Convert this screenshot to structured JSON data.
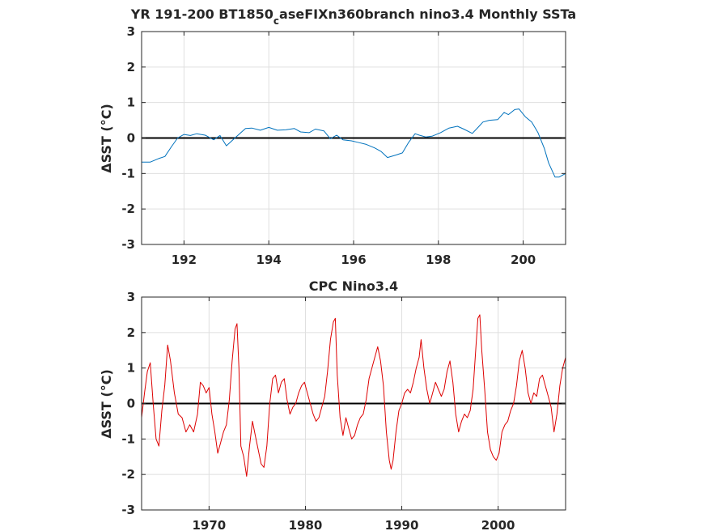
{
  "chart_data": [
    {
      "type": "line",
      "title": "YR 191-200 BT1850",
      "title_subscript": "c",
      "title_rest": "aseFIXn360branch nino3.4 Monthly SSTa",
      "ylabel": "ΔSST (°C)",
      "xlim": [
        191,
        201
      ],
      "ylim": [
        -3,
        3
      ],
      "xticks": [
        192,
        194,
        196,
        198,
        200
      ],
      "xtick_labels": [
        "192",
        "194",
        "196",
        "198",
        "200"
      ],
      "yticks": [
        -3,
        -2,
        -1,
        0,
        1,
        2,
        3
      ],
      "ytick_labels": [
        "-3",
        "-2",
        "-1",
        "0",
        "1",
        "2",
        "3"
      ],
      "grid": true,
      "zero_line": true,
      "series": [
        {
          "color": "#0072BD",
          "x": [
            191.0,
            191.2,
            191.4,
            191.55,
            191.7,
            191.85,
            192.0,
            192.15,
            192.3,
            192.5,
            192.7,
            192.85,
            193.0,
            193.2,
            193.45,
            193.6,
            193.8,
            194.0,
            194.2,
            194.4,
            194.6,
            194.75,
            194.95,
            195.1,
            195.3,
            195.45,
            195.6,
            195.75,
            195.95,
            196.1,
            196.3,
            196.5,
            196.65,
            196.8,
            197.0,
            197.15,
            197.3,
            197.45,
            197.55,
            197.7,
            197.85,
            198.05,
            198.25,
            198.45,
            198.6,
            198.8,
            198.95,
            199.05,
            199.2,
            199.4,
            199.55,
            199.65,
            199.8,
            199.9,
            200.05,
            200.2,
            200.35,
            200.5,
            200.6,
            200.75,
            200.85,
            201.0
          ],
          "y": [
            -0.68,
            -0.68,
            -0.58,
            -0.52,
            -0.25,
            0.0,
            0.1,
            0.07,
            0.12,
            0.08,
            -0.05,
            0.07,
            -0.22,
            0.0,
            0.27,
            0.28,
            0.22,
            0.3,
            0.22,
            0.23,
            0.27,
            0.17,
            0.15,
            0.25,
            0.2,
            -0.02,
            0.08,
            -0.05,
            -0.08,
            -0.12,
            -0.18,
            -0.28,
            -0.38,
            -0.55,
            -0.48,
            -0.42,
            -0.12,
            0.12,
            0.08,
            0.03,
            0.05,
            0.15,
            0.28,
            0.33,
            0.25,
            0.13,
            0.32,
            0.45,
            0.5,
            0.52,
            0.72,
            0.66,
            0.8,
            0.82,
            0.6,
            0.45,
            0.15,
            -0.3,
            -0.7,
            -1.1,
            -1.1,
            -1.0
          ]
        }
      ]
    },
    {
      "type": "line",
      "title": "CPC Nino3.4",
      "ylabel": "ΔSST (°C)",
      "xlim": [
        1963,
        2007
      ],
      "ylim": [
        -3,
        3
      ],
      "xticks": [
        1970,
        1980,
        1990,
        2000
      ],
      "xtick_labels": [
        "1970",
        "1980",
        "1990",
        "2000"
      ],
      "yticks": [
        -3,
        -2,
        -1,
        0,
        1,
        2,
        3
      ],
      "ytick_labels": [
        "-3",
        "-2",
        "-1",
        "0",
        "1",
        "2",
        "3"
      ],
      "grid": true,
      "zero_line": true,
      "series": [
        {
          "color": "#DD0000",
          "x": [
            1963.0,
            1963.3,
            1963.6,
            1963.9,
            1964.2,
            1964.5,
            1964.8,
            1965.1,
            1965.4,
            1965.7,
            1966.0,
            1966.4,
            1966.8,
            1967.2,
            1967.6,
            1968.0,
            1968.4,
            1968.8,
            1969.1,
            1969.4,
            1969.7,
            1970.0,
            1970.3,
            1970.6,
            1970.9,
            1971.2,
            1971.5,
            1971.8,
            1972.1,
            1972.4,
            1972.7,
            1972.9,
            1973.1,
            1973.3,
            1973.6,
            1973.9,
            1974.2,
            1974.5,
            1974.8,
            1975.1,
            1975.4,
            1975.7,
            1976.0,
            1976.3,
            1976.6,
            1976.9,
            1977.2,
            1977.5,
            1977.8,
            1978.1,
            1978.4,
            1978.7,
            1979.0,
            1979.3,
            1979.6,
            1979.9,
            1980.2,
            1980.5,
            1980.8,
            1981.1,
            1981.4,
            1981.7,
            1982.0,
            1982.3,
            1982.6,
            1982.9,
            1983.1,
            1983.3,
            1983.6,
            1983.9,
            1984.2,
            1984.5,
            1984.8,
            1985.1,
            1985.4,
            1985.7,
            1986.0,
            1986.3,
            1986.6,
            1986.9,
            1987.2,
            1987.5,
            1987.8,
            1988.1,
            1988.4,
            1988.7,
            1988.9,
            1989.1,
            1989.4,
            1989.7,
            1990.0,
            1990.3,
            1990.6,
            1990.9,
            1991.2,
            1991.5,
            1991.8,
            1992.0,
            1992.3,
            1992.6,
            1992.9,
            1993.2,
            1993.5,
            1993.8,
            1994.1,
            1994.4,
            1994.7,
            1995.0,
            1995.3,
            1995.6,
            1995.9,
            1996.2,
            1996.5,
            1996.8,
            1997.1,
            1997.4,
            1997.7,
            1997.9,
            1998.1,
            1998.3,
            1998.6,
            1998.9,
            1999.2,
            1999.5,
            1999.8,
            2000.1,
            2000.4,
            2000.7,
            2001.0,
            2001.3,
            2001.6,
            2001.9,
            2002.2,
            2002.5,
            2002.8,
            2003.1,
            2003.4,
            2003.7,
            2004.0,
            2004.3,
            2004.6,
            2004.9,
            2005.2,
            2005.5,
            2005.8,
            2006.1,
            2006.4,
            2006.7,
            2007.0
          ],
          "y": [
            -0.4,
            0.3,
            0.9,
            1.15,
            0.0,
            -1.0,
            -1.2,
            -0.2,
            0.5,
            1.65,
            1.2,
            0.3,
            -0.3,
            -0.4,
            -0.8,
            -0.6,
            -0.8,
            -0.3,
            0.6,
            0.5,
            0.3,
            0.45,
            -0.3,
            -0.8,
            -1.4,
            -1.1,
            -0.8,
            -0.6,
            0.1,
            1.2,
            2.1,
            2.25,
            1.0,
            -1.2,
            -1.5,
            -2.05,
            -1.2,
            -0.5,
            -0.9,
            -1.3,
            -1.7,
            -1.8,
            -1.2,
            0.0,
            0.7,
            0.8,
            0.3,
            0.6,
            0.7,
            0.1,
            -0.3,
            -0.1,
            0.0,
            0.3,
            0.5,
            0.6,
            0.3,
            0.0,
            -0.3,
            -0.5,
            -0.4,
            -0.1,
            0.2,
            0.9,
            1.8,
            2.3,
            2.4,
            0.8,
            -0.4,
            -0.9,
            -0.4,
            -0.7,
            -1.0,
            -0.9,
            -0.6,
            -0.4,
            -0.3,
            0.1,
            0.7,
            1.0,
            1.3,
            1.6,
            1.2,
            0.5,
            -0.8,
            -1.6,
            -1.85,
            -1.6,
            -0.8,
            -0.2,
            0.0,
            0.3,
            0.4,
            0.3,
            0.6,
            1.0,
            1.3,
            1.8,
            1.0,
            0.4,
            0.0,
            0.3,
            0.6,
            0.4,
            0.2,
            0.4,
            0.9,
            1.2,
            0.6,
            -0.3,
            -0.8,
            -0.5,
            -0.3,
            -0.4,
            -0.2,
            0.4,
            1.6,
            2.4,
            2.5,
            1.5,
            0.4,
            -0.8,
            -1.3,
            -1.5,
            -1.6,
            -1.4,
            -0.8,
            -0.6,
            -0.5,
            -0.2,
            0.0,
            0.5,
            1.2,
            1.5,
            1.0,
            0.3,
            0.0,
            0.3,
            0.2,
            0.7,
            0.8,
            0.5,
            0.2,
            -0.1,
            -0.8,
            -0.3,
            0.5,
            1.0,
            1.3
          ]
        }
      ]
    }
  ]
}
